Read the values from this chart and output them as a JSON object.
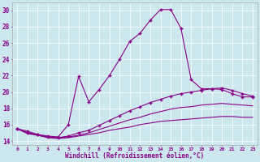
{
  "xlabel": "Windchill (Refroidissement éolien,°C)",
  "ylabel": "",
  "background_color": "#cce8ee",
  "line_color": "#880088",
  "xlim": [
    -0.5,
    23.5
  ],
  "ylim": [
    13.5,
    31.0
  ],
  "yticks": [
    14,
    16,
    18,
    20,
    22,
    24,
    26,
    28,
    30
  ],
  "xticks": [
    0,
    1,
    2,
    3,
    4,
    5,
    6,
    7,
    8,
    9,
    10,
    11,
    12,
    13,
    14,
    15,
    16,
    17,
    18,
    19,
    20,
    21,
    22,
    23
  ],
  "series": [
    {
      "x": [
        0,
        1,
        2,
        3,
        4,
        5,
        6,
        7,
        8,
        9,
        10,
        11,
        12,
        13,
        14,
        15,
        16,
        17,
        18,
        19,
        20,
        21,
        22,
        23
      ],
      "y": [
        15.5,
        15.2,
        14.8,
        14.6,
        14.5,
        16.0,
        21.9,
        18.8,
        20.3,
        22.0,
        24.0,
        26.2,
        27.2,
        28.8,
        30.1,
        30.1,
        27.8,
        21.5,
        20.4,
        20.4,
        20.3,
        19.8,
        19.4,
        19.4
      ],
      "marker": "+"
    },
    {
      "x": [
        0,
        1,
        2,
        3,
        4,
        5,
        6,
        7,
        8,
        9,
        10,
        11,
        12,
        13,
        14,
        15,
        16,
        17,
        18,
        19,
        20,
        21,
        22,
        23
      ],
      "y": [
        15.5,
        15.0,
        14.8,
        14.5,
        14.4,
        14.6,
        15.0,
        15.3,
        15.9,
        16.5,
        17.1,
        17.7,
        18.2,
        18.7,
        19.1,
        19.5,
        19.8,
        20.0,
        20.2,
        20.4,
        20.5,
        20.2,
        19.8,
        19.5
      ],
      "marker": "+"
    },
    {
      "x": [
        0,
        1,
        2,
        3,
        4,
        5,
        6,
        7,
        8,
        9,
        10,
        11,
        12,
        13,
        14,
        15,
        16,
        17,
        18,
        19,
        20,
        21,
        22,
        23
      ],
      "y": [
        15.5,
        15.0,
        14.7,
        14.5,
        14.4,
        14.5,
        14.7,
        15.0,
        15.4,
        15.8,
        16.2,
        16.6,
        16.9,
        17.3,
        17.6,
        17.9,
        18.1,
        18.2,
        18.4,
        18.5,
        18.6,
        18.5,
        18.4,
        18.3
      ],
      "marker": null
    },
    {
      "x": [
        0,
        1,
        2,
        3,
        4,
        5,
        6,
        7,
        8,
        9,
        10,
        11,
        12,
        13,
        14,
        15,
        16,
        17,
        18,
        19,
        20,
        21,
        22,
        23
      ],
      "y": [
        15.5,
        14.9,
        14.7,
        14.4,
        14.3,
        14.4,
        14.6,
        14.8,
        15.0,
        15.3,
        15.5,
        15.7,
        16.0,
        16.2,
        16.4,
        16.5,
        16.6,
        16.7,
        16.8,
        16.9,
        17.0,
        17.0,
        16.9,
        16.9
      ],
      "marker": null
    }
  ]
}
